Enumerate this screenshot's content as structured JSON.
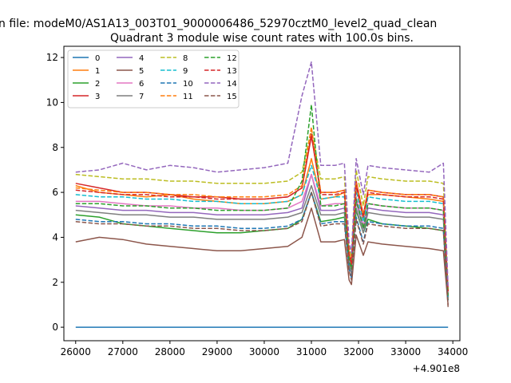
{
  "figure": {
    "suptitle": "n file: modeM0/AS1A13_003T01_9000006486_52970cztM0_level2_quad_clean",
    "title": "Quadrant 3 module wise count rates with 100.0s bins.",
    "x_offset_label": "+4.901e8"
  },
  "chart_data": {
    "type": "line",
    "title": "Quadrant 3 module wise count rates with 100.0s bins.",
    "xlabel": "",
    "ylabel": "",
    "x_offset": 490100000,
    "xlim": [
      25750,
      34150
    ],
    "ylim": [
      -0.6,
      12.5
    ],
    "xticks": [
      26000,
      27000,
      28000,
      29000,
      30000,
      31000,
      32000,
      33000,
      34000
    ],
    "yticks": [
      0,
      2,
      4,
      6,
      8,
      10,
      12
    ],
    "grid": false,
    "legend_position": "top-left",
    "legend_columns": 4,
    "x": [
      26000,
      26500,
      27000,
      27500,
      28000,
      28500,
      29000,
      29500,
      30000,
      30500,
      30800,
      31000,
      31200,
      31500,
      31700,
      31800,
      31850,
      31950,
      32100,
      32200,
      32500,
      33000,
      33500,
      33800,
      33900
    ],
    "series": [
      {
        "name": "0",
        "color": "#1f77b4",
        "dashed": false,
        "values": [
          0,
          0,
          0,
          0,
          0,
          0,
          0,
          0,
          0,
          0,
          0,
          0,
          0,
          0,
          0,
          0,
          0,
          0,
          0,
          0,
          0,
          0,
          0,
          0,
          0
        ]
      },
      {
        "name": "1",
        "color": "#ff7f0e",
        "dashed": false,
        "values": [
          6.3,
          6.0,
          5.9,
          5.8,
          5.9,
          5.7,
          5.6,
          5.5,
          5.5,
          5.6,
          5.9,
          7.5,
          5.7,
          5.8,
          6.0,
          3.2,
          2.8,
          6.3,
          4.8,
          5.9,
          5.9,
          5.8,
          5.7,
          5.6,
          1.5
        ]
      },
      {
        "name": "2",
        "color": "#2ca02c",
        "dashed": false,
        "values": [
          5.0,
          4.9,
          4.6,
          4.5,
          4.4,
          4.3,
          4.2,
          4.2,
          4.3,
          4.4,
          4.8,
          6.0,
          4.7,
          4.8,
          4.9,
          3.0,
          2.6,
          5.2,
          4.2,
          4.8,
          4.6,
          4.5,
          4.4,
          4.3,
          1.2
        ]
      },
      {
        "name": "3",
        "color": "#d62728",
        "dashed": false,
        "values": [
          6.4,
          6.2,
          6.0,
          6.0,
          5.9,
          5.8,
          5.8,
          5.7,
          5.7,
          5.8,
          6.2,
          8.5,
          6.0,
          6.0,
          6.1,
          3.3,
          2.9,
          6.5,
          5.0,
          6.1,
          6.0,
          5.9,
          5.9,
          5.8,
          1.6
        ]
      },
      {
        "name": "4",
        "color": "#9467bd",
        "dashed": false,
        "values": [
          5.4,
          5.3,
          5.2,
          5.2,
          5.1,
          5.1,
          5.0,
          5.0,
          5.0,
          5.1,
          5.3,
          6.8,
          5.2,
          5.2,
          5.3,
          2.9,
          2.5,
          5.6,
          4.4,
          5.3,
          5.2,
          5.1,
          5.1,
          5.0,
          1.4
        ]
      },
      {
        "name": "5",
        "color": "#8c564b",
        "dashed": false,
        "values": [
          3.8,
          4.0,
          3.9,
          3.7,
          3.6,
          3.5,
          3.4,
          3.4,
          3.5,
          3.6,
          4.0,
          5.3,
          3.8,
          3.8,
          3.9,
          2.1,
          1.9,
          4.1,
          3.2,
          3.8,
          3.7,
          3.6,
          3.5,
          3.4,
          1.0
        ]
      },
      {
        "name": "6",
        "color": "#e377c2",
        "dashed": false,
        "values": [
          5.6,
          5.6,
          5.5,
          5.4,
          5.4,
          5.3,
          5.3,
          5.2,
          5.2,
          5.3,
          5.6,
          6.8,
          5.4,
          5.5,
          5.5,
          3.0,
          2.6,
          5.8,
          4.5,
          5.5,
          5.4,
          5.3,
          5.3,
          5.2,
          1.5
        ]
      },
      {
        "name": "7",
        "color": "#7f7f7f",
        "dashed": false,
        "values": [
          5.2,
          5.1,
          5.0,
          5.0,
          4.9,
          4.9,
          4.8,
          4.8,
          4.8,
          4.9,
          5.1,
          6.3,
          5.0,
          5.0,
          5.1,
          2.8,
          2.4,
          5.3,
          4.2,
          5.1,
          5.0,
          4.9,
          4.9,
          4.8,
          1.3
        ]
      },
      {
        "name": "8",
        "color": "#bcbd22",
        "dashed": true,
        "values": [
          6.8,
          6.7,
          6.6,
          6.6,
          6.5,
          6.5,
          6.4,
          6.4,
          6.4,
          6.5,
          6.9,
          8.8,
          6.6,
          6.6,
          6.7,
          3.6,
          3.1,
          7.0,
          5.4,
          6.7,
          6.6,
          6.5,
          6.5,
          6.4,
          1.7
        ]
      },
      {
        "name": "9",
        "color": "#17becf",
        "dashed": true,
        "values": [
          5.9,
          5.8,
          5.8,
          5.7,
          5.7,
          5.6,
          5.6,
          5.5,
          5.5,
          5.6,
          5.9,
          7.2,
          5.7,
          5.8,
          5.8,
          3.1,
          2.7,
          6.1,
          4.7,
          5.8,
          5.7,
          5.6,
          5.6,
          5.5,
          1.5
        ]
      },
      {
        "name": "10",
        "color": "#1f77b4",
        "dashed": true,
        "values": [
          4.8,
          4.7,
          4.7,
          4.6,
          4.6,
          4.5,
          4.5,
          4.4,
          4.4,
          4.5,
          4.8,
          6.0,
          4.6,
          4.7,
          4.7,
          2.6,
          2.2,
          4.9,
          3.8,
          4.7,
          4.6,
          4.5,
          4.5,
          4.4,
          1.2
        ]
      },
      {
        "name": "11",
        "color": "#ff7f0e",
        "dashed": true,
        "values": [
          6.2,
          6.1,
          6.0,
          6.0,
          5.9,
          5.9,
          5.8,
          5.8,
          5.8,
          5.9,
          6.3,
          8.9,
          6.0,
          6.0,
          6.1,
          3.3,
          2.8,
          6.4,
          5.0,
          6.1,
          6.0,
          5.9,
          5.9,
          5.8,
          1.6
        ]
      },
      {
        "name": "12",
        "color": "#2ca02c",
        "dashed": true,
        "values": [
          5.5,
          5.5,
          5.4,
          5.4,
          5.3,
          5.3,
          5.2,
          5.2,
          5.2,
          5.3,
          6.5,
          9.9,
          5.4,
          5.4,
          5.5,
          3.0,
          2.6,
          5.7,
          4.4,
          5.5,
          5.4,
          5.3,
          5.3,
          5.2,
          1.4
        ]
      },
      {
        "name": "13",
        "color": "#d62728",
        "dashed": true,
        "values": [
          6.1,
          6.0,
          5.9,
          5.9,
          5.8,
          5.8,
          5.7,
          5.7,
          5.7,
          5.8,
          6.2,
          8.6,
          5.9,
          5.9,
          6.0,
          3.2,
          2.8,
          6.3,
          4.9,
          6.0,
          5.9,
          5.8,
          5.8,
          5.7,
          1.6
        ]
      },
      {
        "name": "14",
        "color": "#9467bd",
        "dashed": true,
        "values": [
          6.9,
          7.0,
          7.3,
          7.0,
          7.2,
          7.1,
          6.9,
          7.0,
          7.1,
          7.3,
          10.3,
          11.8,
          7.2,
          7.2,
          7.3,
          3.8,
          3.3,
          7.5,
          5.9,
          7.2,
          7.1,
          7.0,
          6.9,
          7.3,
          1.8
        ]
      },
      {
        "name": "15",
        "color": "#8c564b",
        "dashed": true,
        "values": [
          4.7,
          4.6,
          4.6,
          4.5,
          4.5,
          4.4,
          4.4,
          4.3,
          4.3,
          4.4,
          4.7,
          6.0,
          4.5,
          4.6,
          4.6,
          2.5,
          2.1,
          4.8,
          3.7,
          4.6,
          4.5,
          4.4,
          4.4,
          4.3,
          0.9
        ]
      }
    ]
  }
}
